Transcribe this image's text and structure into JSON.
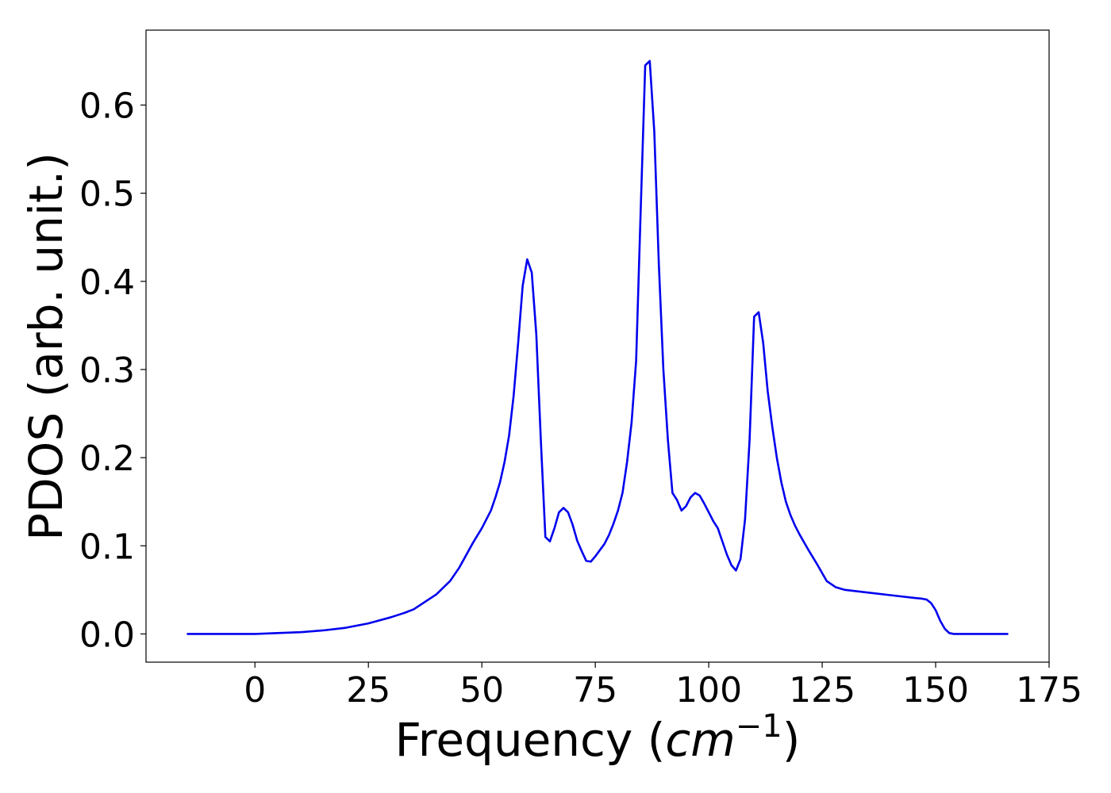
{
  "chart_data": {
    "type": "line",
    "title": "",
    "xlabel_prefix": "Frequency (",
    "xlabel_math": "cm",
    "xlabel_sup": "−1",
    "xlabel_suffix": ")",
    "ylabel": "PDOS (arb. unit.)",
    "xlim": [
      -24,
      175
    ],
    "ylim": [
      -0.032,
      0.685
    ],
    "xticks": [
      0,
      25,
      50,
      75,
      100,
      125,
      150,
      175
    ],
    "xtick_labels": [
      "0",
      "25",
      "50",
      "75",
      "100",
      "125",
      "150",
      "175"
    ],
    "yticks": [
      0.0,
      0.1,
      0.2,
      0.3,
      0.4,
      0.5,
      0.6
    ],
    "ytick_labels": [
      "0.0",
      "0.1",
      "0.2",
      "0.3",
      "0.4",
      "0.5",
      "0.6"
    ],
    "grid": false,
    "series": [
      {
        "color": "#0000ee",
        "x": [
          -15,
          0,
          5,
          10,
          15,
          20,
          25,
          30,
          33,
          35,
          40,
          43,
          45,
          48,
          50,
          52,
          53,
          54,
          55,
          56,
          57,
          58,
          59,
          60,
          61,
          62,
          63,
          64,
          65,
          66,
          67,
          68,
          69,
          70,
          71,
          72,
          73,
          74,
          75,
          76,
          77,
          78,
          79,
          80,
          81,
          82,
          83,
          84,
          85,
          86,
          87,
          88,
          89,
          90,
          91,
          92,
          93,
          94,
          95,
          96,
          97,
          98,
          99,
          100,
          101,
          102,
          103,
          104,
          105,
          106,
          107,
          108,
          109,
          110,
          111,
          112,
          113,
          114,
          115,
          116,
          117,
          118,
          119,
          120,
          122,
          124,
          126,
          128,
          130,
          135,
          140,
          145,
          147,
          148,
          149,
          150,
          151,
          152,
          153,
          154,
          155,
          160,
          166
        ],
        "y": [
          0.0,
          0.0,
          0.001,
          0.002,
          0.004,
          0.007,
          0.012,
          0.019,
          0.024,
          0.028,
          0.045,
          0.06,
          0.075,
          0.103,
          0.12,
          0.14,
          0.155,
          0.172,
          0.195,
          0.225,
          0.27,
          0.33,
          0.395,
          0.425,
          0.41,
          0.34,
          0.22,
          0.11,
          0.105,
          0.12,
          0.138,
          0.143,
          0.138,
          0.124,
          0.106,
          0.094,
          0.083,
          0.082,
          0.088,
          0.095,
          0.102,
          0.112,
          0.125,
          0.14,
          0.16,
          0.195,
          0.24,
          0.31,
          0.48,
          0.645,
          0.65,
          0.57,
          0.42,
          0.3,
          0.22,
          0.16,
          0.152,
          0.14,
          0.145,
          0.155,
          0.16,
          0.157,
          0.148,
          0.138,
          0.128,
          0.12,
          0.105,
          0.09,
          0.078,
          0.072,
          0.085,
          0.13,
          0.22,
          0.36,
          0.365,
          0.33,
          0.275,
          0.235,
          0.2,
          0.172,
          0.15,
          0.135,
          0.123,
          0.113,
          0.095,
          0.078,
          0.06,
          0.053,
          0.05,
          0.047,
          0.044,
          0.041,
          0.04,
          0.039,
          0.035,
          0.027,
          0.015,
          0.006,
          0.001,
          0.0,
          0.0,
          0.0,
          0.0
        ]
      }
    ]
  }
}
